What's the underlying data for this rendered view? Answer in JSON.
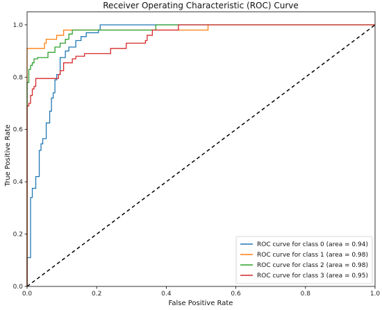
{
  "chart_data": {
    "type": "line",
    "title": "Receiver Operating Characteristic (ROC) Curve",
    "xlabel": "False Positive Rate",
    "ylabel": "True Positive Rate",
    "xlim": [
      0.0,
      1.0
    ],
    "ylim": [
      0.0,
      1.05
    ],
    "x_ticks": [
      "0.0",
      "0.2",
      "0.4",
      "0.6",
      "0.8",
      "1.0"
    ],
    "y_ticks": [
      "0.0",
      "0.2",
      "0.4",
      "0.6",
      "0.8",
      "1.0"
    ],
    "grid": false,
    "legend_position": "lower-right",
    "diagonal": {
      "x": [
        0,
        1
      ],
      "y": [
        0,
        1
      ],
      "color": "#000000",
      "style": "dashed"
    },
    "series": [
      {
        "name": "ROC curve for class 0 (area = 0.94)",
        "color": "#1f77b4",
        "x": [
          0,
          0,
          0.01,
          0.01,
          0.015,
          0.015,
          0.025,
          0.025,
          0.035,
          0.035,
          0.04,
          0.04,
          0.045,
          0.045,
          0.055,
          0.055,
          0.065,
          0.065,
          0.07,
          0.07,
          0.075,
          0.075,
          0.08,
          0.08,
          0.085,
          0.085,
          0.095,
          0.095,
          0.11,
          0.11,
          0.12,
          0.12,
          0.14,
          0.14,
          0.155,
          0.155,
          0.17,
          0.17,
          0.205,
          0.205,
          0.21,
          0.21,
          0.22,
          1.0
        ],
        "y": [
          0,
          0.11,
          0.11,
          0.34,
          0.34,
          0.375,
          0.375,
          0.42,
          0.42,
          0.52,
          0.52,
          0.545,
          0.545,
          0.565,
          0.565,
          0.625,
          0.625,
          0.67,
          0.67,
          0.72,
          0.72,
          0.74,
          0.74,
          0.79,
          0.79,
          0.81,
          0.81,
          0.875,
          0.875,
          0.9,
          0.9,
          0.915,
          0.915,
          0.94,
          0.94,
          0.955,
          0.955,
          0.97,
          0.97,
          0.98,
          0.98,
          1.0,
          1.0,
          1.0
        ]
      },
      {
        "name": "ROC curve for class 1 (area = 0.98)",
        "color": "#ff7f0e",
        "x": [
          0,
          0,
          0.05,
          0.05,
          0.055,
          0.055,
          0.085,
          0.085,
          0.105,
          0.105,
          0.52,
          0.52,
          1.0
        ],
        "y": [
          0,
          0.91,
          0.91,
          0.93,
          0.93,
          0.945,
          0.945,
          0.96,
          0.96,
          0.98,
          0.98,
          1.0,
          1.0
        ]
      },
      {
        "name": "ROC curve for class 2 (area = 0.98)",
        "color": "#2ca02c",
        "x": [
          0,
          0,
          0.005,
          0.005,
          0.01,
          0.01,
          0.015,
          0.015,
          0.02,
          0.02,
          0.03,
          0.03,
          0.06,
          0.06,
          0.08,
          0.08,
          0.095,
          0.095,
          0.11,
          0.11,
          0.12,
          0.12,
          0.13,
          0.13,
          0.37,
          0.37,
          1.0
        ],
        "y": [
          0,
          0.78,
          0.78,
          0.83,
          0.83,
          0.845,
          0.845,
          0.855,
          0.855,
          0.87,
          0.87,
          0.875,
          0.875,
          0.895,
          0.895,
          0.915,
          0.915,
          0.93,
          0.93,
          0.945,
          0.945,
          0.965,
          0.965,
          0.98,
          0.98,
          1.0,
          1.0
        ]
      },
      {
        "name": "ROC curve for class 3 (area = 0.95)",
        "color": "#d62728",
        "x": [
          0,
          0,
          0.005,
          0.005,
          0.01,
          0.01,
          0.015,
          0.015,
          0.02,
          0.02,
          0.025,
          0.025,
          0.05,
          0.05,
          0.09,
          0.09,
          0.095,
          0.095,
          0.105,
          0.105,
          0.13,
          0.13,
          0.14,
          0.14,
          0.165,
          0.165,
          0.24,
          0.24,
          0.285,
          0.285,
          0.34,
          0.34,
          0.345,
          0.345,
          0.36,
          0.36,
          0.435,
          0.435,
          1.0
        ],
        "y": [
          0,
          0.69,
          0.69,
          0.7,
          0.7,
          0.73,
          0.73,
          0.755,
          0.755,
          0.765,
          0.765,
          0.795,
          0.795,
          0.795,
          0.795,
          0.81,
          0.81,
          0.825,
          0.825,
          0.855,
          0.855,
          0.87,
          0.87,
          0.88,
          0.88,
          0.89,
          0.89,
          0.91,
          0.91,
          0.93,
          0.93,
          0.94,
          0.94,
          0.96,
          0.96,
          0.98,
          0.98,
          1.0,
          1.0
        ]
      }
    ]
  }
}
